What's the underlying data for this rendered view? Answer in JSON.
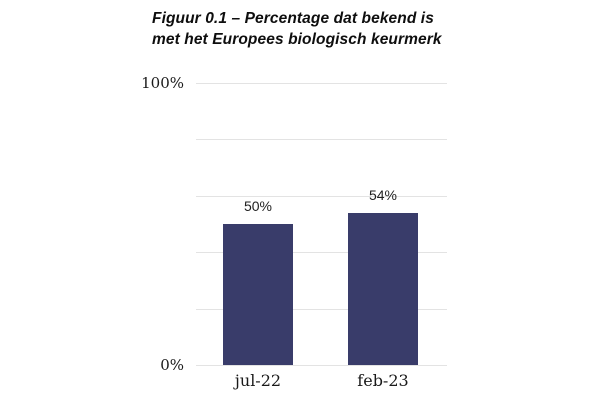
{
  "figure": {
    "title_line1": "Figuur 0.1 – Percentage dat bekend is",
    "title_line2": "met het Europees biologisch keurmerk"
  },
  "chart_data": {
    "type": "bar",
    "title": "Figuur 0.1 – Percentage dat bekend is met het Europees biologisch keurmerk",
    "categories": [
      "jul-22",
      "feb-23"
    ],
    "values": [
      50,
      54
    ],
    "value_labels": [
      "50%",
      "54%"
    ],
    "xlabel": "",
    "ylabel": "",
    "ylim": [
      0,
      100
    ],
    "yticks": [
      0,
      20,
      40,
      60,
      80,
      100
    ],
    "ytick_labels": {
      "0": "0%",
      "100": "100%"
    },
    "grid": "horizontal",
    "legend": "none",
    "bar_color": "#393c6a",
    "gridline_color": "#e3e3e3",
    "axis_text_color": "#1a1a1a",
    "value_text_color": "#1f1f1f",
    "title_text_color": "#0e0e0e"
  }
}
